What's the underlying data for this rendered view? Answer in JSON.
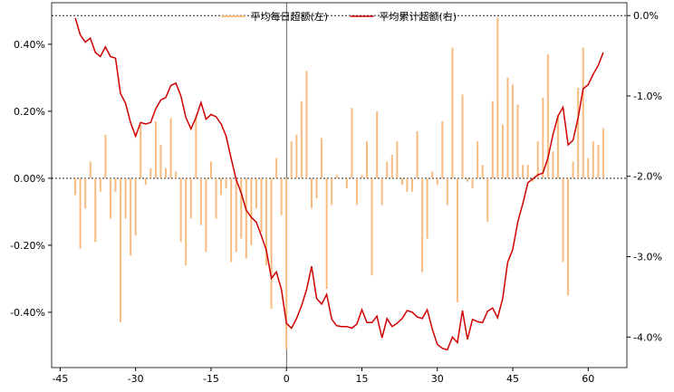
{
  "chart_data": {
    "type": "bar_line",
    "legend": "upper center",
    "x": [
      -42,
      -41,
      -40,
      -39,
      -38,
      -37,
      -36,
      -35,
      -34,
      -33,
      -32,
      -31,
      -30,
      -29,
      -28,
      -27,
      -26,
      -25,
      -24,
      -23,
      -22,
      -21,
      -20,
      -19,
      -18,
      -17,
      -16,
      -15,
      -14,
      -13,
      -12,
      -11,
      -10,
      -9,
      -8,
      -7,
      -6,
      -5,
      -4,
      -3,
      -2,
      -1,
      0,
      1,
      2,
      3,
      4,
      5,
      6,
      7,
      8,
      9,
      10,
      11,
      12,
      13,
      14,
      15,
      16,
      17,
      18,
      19,
      20,
      21,
      22,
      23,
      24,
      25,
      26,
      27,
      28,
      29,
      30,
      31,
      32,
      33,
      34,
      35,
      36,
      37,
      38,
      39,
      40,
      41,
      42,
      43,
      44,
      45,
      46,
      47,
      48,
      49,
      50,
      51,
      52,
      53,
      54,
      55,
      56,
      57,
      58,
      59,
      60,
      61,
      62,
      63
    ],
    "series": [
      {
        "name": "平均每日超额(左)",
        "type": "bar",
        "color": "#f7bb7f",
        "values": [
          -0.05,
          -0.21,
          -0.09,
          0.05,
          -0.19,
          -0.04,
          0.13,
          -0.12,
          -0.04,
          -0.43,
          -0.12,
          -0.23,
          -0.17,
          0.16,
          -0.02,
          0.03,
          0.17,
          0.1,
          0.03,
          0.18,
          0.02,
          -0.19,
          -0.26,
          -0.12,
          0.19,
          -0.14,
          -0.22,
          0.05,
          -0.12,
          -0.05,
          -0.03,
          -0.25,
          -0.22,
          -0.18,
          -0.24,
          -0.2,
          -0.09,
          -0.16,
          -0.26,
          -0.39,
          0.06,
          -0.11,
          -0.51,
          0.11,
          0.13,
          0.23,
          0.32,
          -0.09,
          -0.06,
          0.12,
          -0.33,
          -0.08,
          0.01,
          0.0,
          -0.03,
          0.21,
          -0.08,
          0.01,
          0.11,
          -0.29,
          0.2,
          -0.08,
          0.05,
          0.07,
          0.11,
          -0.02,
          -0.04,
          -0.04,
          0.14,
          -0.28,
          -0.18,
          0.02,
          -0.02,
          0.17,
          -0.08,
          0.39,
          -0.37,
          0.25,
          -0.01,
          -0.03,
          0.11,
          0.04,
          -0.13,
          0.23,
          0.48,
          0.16,
          0.3,
          0.28,
          0.22,
          0.04,
          0.04,
          -0.01,
          0.11,
          0.24,
          0.37,
          0.08,
          0.19,
          -0.25,
          -0.35,
          0.05,
          0.27,
          0.39,
          0.06,
          0.11,
          0.1,
          0.15
        ]
      },
      {
        "name": "平均累计超额(右)",
        "type": "line",
        "axis": "y2",
        "color": "#d00000",
        "values": [
          -0.03,
          -0.24,
          -0.33,
          -0.28,
          -0.46,
          -0.51,
          -0.39,
          -0.51,
          -0.53,
          -0.97,
          -1.09,
          -1.33,
          -1.5,
          -1.33,
          -1.35,
          -1.33,
          -1.16,
          -1.05,
          -1.02,
          -0.87,
          -0.84,
          -1.0,
          -1.27,
          -1.41,
          -1.27,
          -1.08,
          -1.29,
          -1.23,
          -1.26,
          -1.35,
          -1.5,
          -1.78,
          -2.04,
          -2.21,
          -2.42,
          -2.51,
          -2.57,
          -2.74,
          -2.92,
          -3.27,
          -3.19,
          -3.41,
          -3.83,
          -3.89,
          -3.77,
          -3.61,
          -3.41,
          -3.12,
          -3.52,
          -3.59,
          -3.47,
          -3.78,
          -3.86,
          -3.87,
          -3.87,
          -3.89,
          -3.84,
          -3.66,
          -3.82,
          -3.82,
          -3.74,
          -4.01,
          -3.77,
          -3.87,
          -3.83,
          -3.77,
          -3.67,
          -3.69,
          -3.75,
          -3.77,
          -3.66,
          -3.9,
          -4.09,
          -4.14,
          -4.16,
          -4.0,
          -4.07,
          -3.67,
          -4.03,
          -3.78,
          -3.81,
          -3.82,
          -3.68,
          -3.64,
          -3.76,
          -3.52,
          -3.07,
          -2.91,
          -2.57,
          -2.34,
          -2.08,
          -2.03,
          -1.98,
          -1.96,
          -1.77,
          -1.48,
          -1.25,
          -1.14,
          -1.61,
          -1.55,
          -1.27,
          -0.91,
          -0.86,
          -0.73,
          -0.62,
          -0.46
        ]
      }
    ],
    "xlim": [
      -46.7,
      67.7
    ],
    "xticks": [
      -45,
      -30,
      -15,
      0,
      15,
      30,
      45,
      60
    ],
    "ylim": [
      -0.565,
      0.524
    ],
    "yticks": [
      {
        "value": -0.4,
        "label": "-0.40%"
      },
      {
        "value": -0.2,
        "label": "-0.20%"
      },
      {
        "value": 0,
        "label": "0.00%"
      },
      {
        "value": 0.2,
        "label": "0.20%"
      },
      {
        "value": 0.4,
        "label": "0.40%"
      }
    ],
    "y2lim": [
      -4.38,
      0.16
    ],
    "y2ticks": [
      {
        "value": -4,
        "label": "-4.0%"
      },
      {
        "value": -3,
        "label": "-3.0%"
      },
      {
        "value": -2,
        "label": "-2.0%"
      },
      {
        "value": -1,
        "label": "-1.0%"
      },
      {
        "value": 0,
        "label": "0.0%"
      }
    ]
  }
}
